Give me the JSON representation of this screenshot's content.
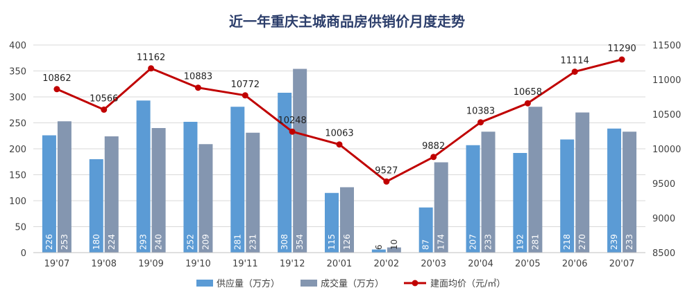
{
  "chart_data": {
    "type": "bar",
    "title": "近一年重庆主城商品房供销价月度走势",
    "categories": [
      "19'07",
      "19'08",
      "19'09",
      "19'10",
      "19'11",
      "19'12",
      "20'01",
      "20'02",
      "20'03",
      "20'04",
      "20'05",
      "20'06",
      "20'07"
    ],
    "series": [
      {
        "name": "供应量（万方）",
        "type": "bar",
        "axis": "left",
        "color": "#5b9bd5",
        "values": [
          226,
          180,
          293,
          252,
          281,
          308,
          115,
          6,
          87,
          207,
          192,
          218,
          239
        ],
        "labels": [
          "226",
          "180",
          "293",
          "252",
          "281",
          "308",
          "115",
          "6",
          "87",
          "207",
          "192",
          "218",
          "239"
        ]
      },
      {
        "name": "成交量（万方）",
        "type": "bar",
        "axis": "left",
        "color": "#8496b0",
        "values": [
          253,
          224,
          240,
          209,
          231,
          354,
          126,
          10,
          174,
          233,
          281,
          270,
          233
        ],
        "labels": [
          "253",
          "224",
          "240",
          "209",
          "231",
          "354",
          "126",
          "10",
          "174",
          "233",
          "281",
          "270",
          "233"
        ]
      },
      {
        "name": "建面均价（元/㎡）",
        "type": "line",
        "axis": "right",
        "color": "#c00000",
        "values": [
          10862,
          10566,
          11162,
          10883,
          10772,
          10248,
          10063,
          9527,
          9882,
          10383,
          10658,
          11114,
          11290
        ],
        "labels": [
          "10862",
          "10566",
          "11162",
          "10883",
          "10772",
          "10248",
          "10063",
          "9527",
          "9882",
          "10383",
          "10658",
          "11114",
          "11290"
        ]
      }
    ],
    "y_left": {
      "ylim": [
        0,
        400
      ],
      "ticks": [
        "0",
        "50",
        "100",
        "150",
        "200",
        "250",
        "300",
        "350",
        "400"
      ]
    },
    "y_right": {
      "ylim": [
        8500,
        11500
      ],
      "ticks": [
        "8500",
        "9000",
        "9500",
        "10000",
        "10500",
        "11000",
        "11500"
      ]
    },
    "grid": true,
    "legend_position": "bottom"
  }
}
